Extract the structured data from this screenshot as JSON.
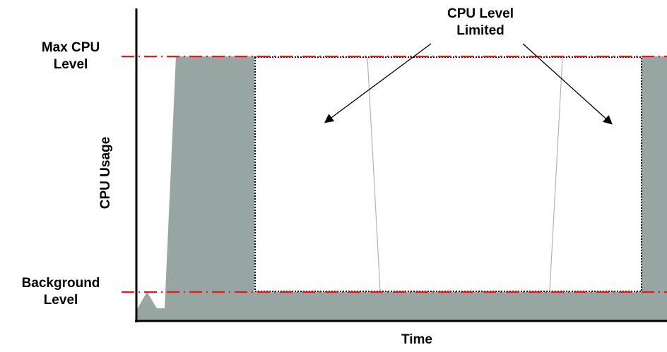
{
  "labels": {
    "max_level_line1": "Max CPU",
    "max_level_line2": "Level",
    "background_line1": "Background",
    "background_line2": "Level",
    "y_axis": "CPU Usage",
    "x_axis": "Time",
    "callout_line1": "CPU Level",
    "callout_line2": "Limited"
  },
  "colors": {
    "usage_fill": "#97a6a3",
    "threshold_line": "#e31c1c",
    "axis": "#000000",
    "limited_outline": "#000000",
    "guide": "#b0b0b0"
  }
}
